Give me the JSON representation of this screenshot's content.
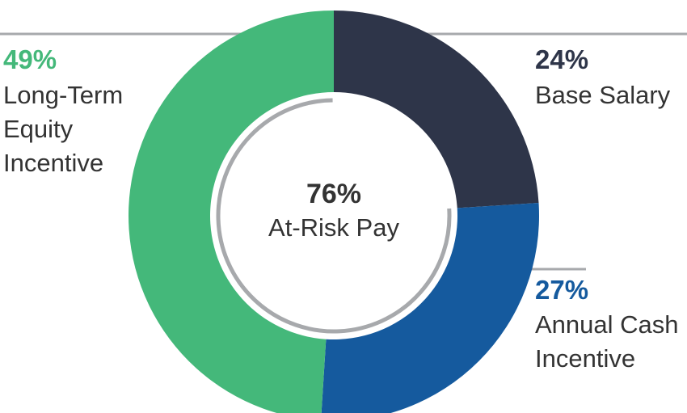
{
  "chart_data": {
    "type": "pie",
    "variant": "donut",
    "slices": [
      {
        "label": "Base Salary",
        "value": 24,
        "display": "24%",
        "lines": [
          "Base Salary"
        ],
        "color": "#2e3549"
      },
      {
        "label": "Annual Cash Incentive",
        "value": 27,
        "display": "27%",
        "lines": [
          "Annual Cash",
          "Incentive"
        ],
        "color": "#155a9e"
      },
      {
        "label": "Long-Term Equity Incentive",
        "value": 49,
        "display": "49%",
        "lines": [
          "Long-Term",
          "Equity",
          "Incentive"
        ],
        "color": "#44b87a"
      }
    ],
    "center": {
      "value": "76%",
      "label": "At-Risk Pay"
    },
    "inner_ring_color": "#a7a9ac",
    "leader_line_color": "#a7a9ac"
  }
}
